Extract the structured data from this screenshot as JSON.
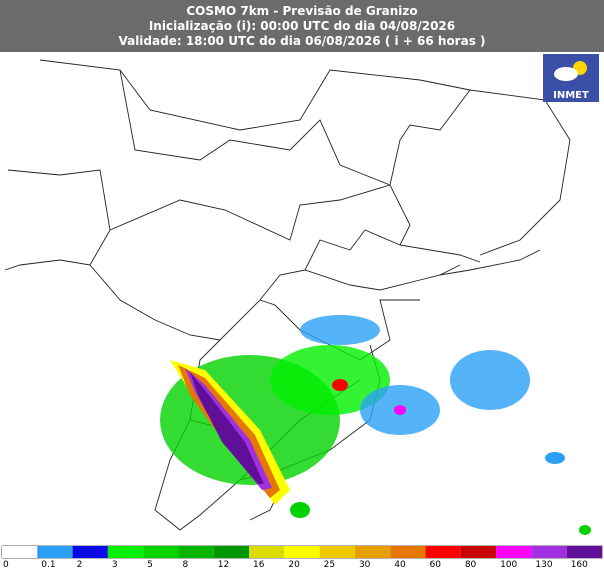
{
  "header": {
    "lines": [
      "COSMO 7km - Previsão de Granizo",
      "Inicialização (i): 00:00 UTC do dia 04/08/2026",
      "Validade: 18:00 UTC do dia 06/08/2026 ( i + 66 horas )"
    ]
  },
  "logo": {
    "label": "INMET"
  },
  "legend": {
    "ticks": [
      0,
      0.1,
      2,
      3,
      5,
      8,
      12,
      16,
      20,
      25,
      30,
      40,
      60,
      80,
      100,
      130,
      160
    ],
    "colors": [
      "#ffffff",
      "#2aa0f5",
      "#0a0ae6",
      "#00f000",
      "#00d200",
      "#00b400",
      "#009600",
      "#dcdc00",
      "#ffff00",
      "#f0c800",
      "#e6a000",
      "#e67800",
      "#ff0000",
      "#c80000",
      "#ff00ff",
      "#a030e0",
      "#601098"
    ]
  }
}
